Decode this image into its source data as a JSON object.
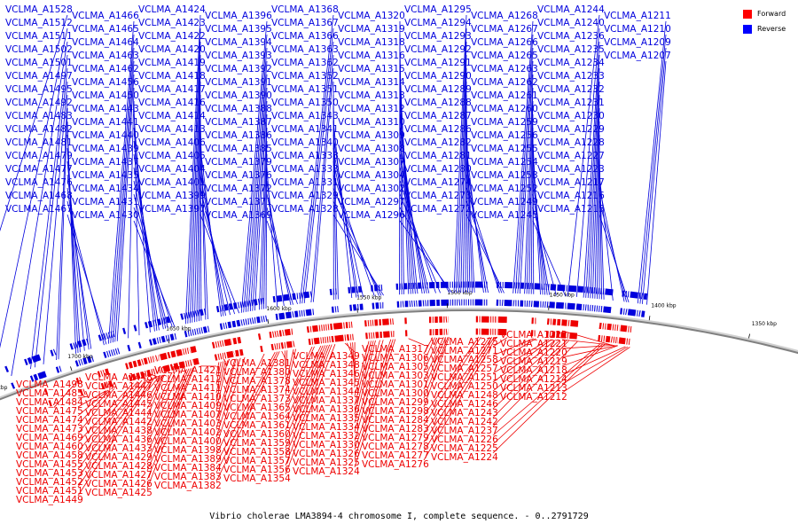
{
  "caption": "Vibrio cholerae LMA3894-4 chromosome I, complete sequence. - 0..2791729",
  "legend": [
    {
      "label": "Forward",
      "color": "#ff0000"
    },
    {
      "label": "Reverse",
      "color": "#0000ff"
    }
  ],
  "colors": {
    "forward": "#ee0000",
    "reverse": "#0000dd",
    "backbone": "#808080"
  },
  "ticks": [
    {
      "label": "1750 kbp",
      "deg": 112
    },
    {
      "label": "1700 kbp",
      "deg": 108
    },
    {
      "label": "1650 kbp",
      "deg": 103.5
    },
    {
      "label": "1600 kbp",
      "deg": 99
    },
    {
      "label": "1550 kbp",
      "deg": 95
    },
    {
      "label": "1500 kbp",
      "deg": 91
    },
    {
      "label": "1450 kbp",
      "deg": 86.5
    },
    {
      "label": "1400 kbp",
      "deg": 82
    },
    {
      "label": "1350 kbp",
      "deg": 77.5
    }
  ],
  "reverse_genes": [
    {
      "name": "VCLMA_A1528",
      "deg": 113.7
    },
    {
      "name": "VCLMA_A1512",
      "deg": 111.5
    },
    {
      "name": "VCLMA_A1511",
      "deg": 110.6
    },
    {
      "name": "VCLMA_A1502",
      "deg": 109.7
    },
    {
      "name": "VCLMA_A1501",
      "deg": 109.5
    },
    {
      "name": "VCLMA_A1497",
      "deg": 109.1
    },
    {
      "name": "VCLMA_A1495",
      "deg": 108.5
    },
    {
      "name": "VCLMA_A1492",
      "deg": 108.4
    },
    {
      "name": "VCLMA_A1483",
      "deg": 107.6
    },
    {
      "name": "VCLMA_A1482",
      "deg": 107.5
    },
    {
      "name": "VCLMA_A1481",
      "deg": 107.4
    },
    {
      "name": "VCLMA_A1477",
      "deg": 107.0
    },
    {
      "name": "VCLMA_A1479",
      "deg": 107.2
    },
    {
      "name": "VCLMA_A1476",
      "deg": 106.9
    },
    {
      "name": "VCLMA_A1468",
      "deg": 106.3
    },
    {
      "name": "VCLMA_A1467",
      "deg": 106.2
    },
    {
      "name": "VCLMA_A1466",
      "deg": 106.1
    },
    {
      "name": "VCLMA_A1465",
      "deg": 106.0
    },
    {
      "name": "VCLMA_A1464",
      "deg": 105.9
    },
    {
      "name": "VCLMA_A1463",
      "deg": 105.8
    },
    {
      "name": "VCLMA_A1462",
      "deg": 105.7
    },
    {
      "name": "VCLMA_A1456",
      "deg": 105.2
    },
    {
      "name": "VCLMA_A1450",
      "deg": 104.7
    },
    {
      "name": "VCLMA_A1443",
      "deg": 104.2
    },
    {
      "name": "VCLMA_A1441",
      "deg": 104.0
    },
    {
      "name": "VCLMA_A1440",
      "deg": 103.9
    },
    {
      "name": "VCLMA_A1439",
      "deg": 103.8
    },
    {
      "name": "VCLMA_A1437",
      "deg": 103.6
    },
    {
      "name": "VCLMA_A1435",
      "deg": 103.5
    },
    {
      "name": "VCLMA_A1434",
      "deg": 103.4
    },
    {
      "name": "VCLMA_A1431",
      "deg": 103.2
    },
    {
      "name": "VCLMA_A1430",
      "deg": 103.1
    },
    {
      "name": "VCLMA_A1424",
      "deg": 102.6
    },
    {
      "name": "VCLMA_A1423",
      "deg": 102.5
    },
    {
      "name": "VCLMA_A1422",
      "deg": 102.4
    },
    {
      "name": "VCLMA_A1418",
      "deg": 102.1
    },
    {
      "name": "VCLMA_A1417",
      "deg": 102.0
    },
    {
      "name": "VCLMA_A1416",
      "deg": 101.9
    },
    {
      "name": "VCLMA_A1414",
      "deg": 101.7
    },
    {
      "name": "VCLMA_A1419",
      "deg": 102.2
    },
    {
      "name": "VCLMA_A1420",
      "deg": 102.3
    },
    {
      "name": "VCLMA_A1413",
      "deg": 101.6
    },
    {
      "name": "VCLMA_A1406",
      "deg": 101.0
    },
    {
      "name": "VCLMA_A1405",
      "deg": 100.9
    },
    {
      "name": "VCLMA_A1404",
      "deg": 100.8
    },
    {
      "name": "VCLMA_A1401",
      "deg": 100.6
    },
    {
      "name": "VCLMA_A1399",
      "deg": 100.4
    },
    {
      "name": "VCLMA_A1397",
      "deg": 100.2
    },
    {
      "name": "VCLMA_A1396",
      "deg": 100.1
    },
    {
      "name": "VCLMA_A1395",
      "deg": 100.0
    },
    {
      "name": "VCLMA_A1394",
      "deg": 99.9
    },
    {
      "name": "VCLMA_A1393",
      "deg": 99.8
    },
    {
      "name": "VCLMA_A1392",
      "deg": 99.7
    },
    {
      "name": "VCLMA_A1391",
      "deg": 99.6
    },
    {
      "name": "VCLMA_A1390",
      "deg": 99.5
    },
    {
      "name": "VCLMA_A1388",
      "deg": 99.3
    },
    {
      "name": "VCLMA_A1387",
      "deg": 99.2
    },
    {
      "name": "VCLMA_A1386",
      "deg": 99.1
    },
    {
      "name": "VCLMA_A1385",
      "deg": 99.0
    },
    {
      "name": "VCLMA_A1379",
      "deg": 98.5
    },
    {
      "name": "VCLMA_A1376",
      "deg": 98.2
    },
    {
      "name": "VCLMA_A1372",
      "deg": 97.9
    },
    {
      "name": "VCLMA_A1371",
      "deg": 97.8
    },
    {
      "name": "VCLMA_A1369",
      "deg": 97.6
    },
    {
      "name": "VCLMA_A1368",
      "deg": 97.5
    },
    {
      "name": "VCLMA_A1367",
      "deg": 97.4
    },
    {
      "name": "VCLMA_A1366",
      "deg": 97.3
    },
    {
      "name": "VCLMA_A1363",
      "deg": 97.0
    },
    {
      "name": "VCLMA_A1362",
      "deg": 96.9
    },
    {
      "name": "VCLMA_A1352",
      "deg": 96.0
    },
    {
      "name": "VCLMA_A1351",
      "deg": 95.9
    },
    {
      "name": "VCLMA_A1350",
      "deg": 95.8
    },
    {
      "name": "VCLMA_A1343",
      "deg": 95.2
    },
    {
      "name": "VCLMA_A1341",
      "deg": 95.0
    },
    {
      "name": "VCLMA_A1340",
      "deg": 94.9
    },
    {
      "name": "VCLMA_A1338",
      "deg": 94.7
    },
    {
      "name": "VCLMA_A1333",
      "deg": 94.2
    },
    {
      "name": "VCLMA_A1331",
      "deg": 94.0
    },
    {
      "name": "VCLMA_A1329",
      "deg": 93.9
    },
    {
      "name": "VCLMA_A1328",
      "deg": 93.8
    },
    {
      "name": "VCLMA_A1320",
      "deg": 93.1
    },
    {
      "name": "VCLMA_A1319",
      "deg": 93.0
    },
    {
      "name": "VCLMA_A1318",
      "deg": 92.9
    },
    {
      "name": "VCLMA_A1316",
      "deg": 92.7
    },
    {
      "name": "VCLMA_A1315",
      "deg": 92.6
    },
    {
      "name": "VCLMA_A1314",
      "deg": 92.5
    },
    {
      "name": "VCLMA_A1313",
      "deg": 92.4
    },
    {
      "name": "VCLMA_A1312",
      "deg": 92.3
    },
    {
      "name": "VCLMA_A1310",
      "deg": 92.1
    },
    {
      "name": "VCLMA_A1309",
      "deg": 92.0
    },
    {
      "name": "VCLMA_A1308",
      "deg": 91.9
    },
    {
      "name": "VCLMA_A1307",
      "deg": 91.8
    },
    {
      "name": "VCLMA_A1304",
      "deg": 91.5
    },
    {
      "name": "VCLMA_A1302",
      "deg": 91.3
    },
    {
      "name": "VCLMA_A1297",
      "deg": 90.9
    },
    {
      "name": "VCLMA_A1296",
      "deg": 90.8
    },
    {
      "name": "VCLMA_A1295",
      "deg": 90.7
    },
    {
      "name": "VCLMA_A1294",
      "deg": 90.6
    },
    {
      "name": "VCLMA_A1293",
      "deg": 90.5
    },
    {
      "name": "VCLMA_A1292",
      "deg": 90.4
    },
    {
      "name": "VCLMA_A1291",
      "deg": 90.3
    },
    {
      "name": "VCLMA_A1290",
      "deg": 90.2
    },
    {
      "name": "VCLMA_A1289",
      "deg": 90.1
    },
    {
      "name": "VCLMA_A1288",
      "deg": 90.0
    },
    {
      "name": "VCLMA_A1287",
      "deg": 89.9
    },
    {
      "name": "VCLMA_A1286",
      "deg": 89.8
    },
    {
      "name": "VCLMA_A1282",
      "deg": 89.4
    },
    {
      "name": "VCLMA_A1281",
      "deg": 89.3
    },
    {
      "name": "VCLMA_A1280",
      "deg": 89.2
    },
    {
      "name": "VCLMA_A1274",
      "deg": 88.7
    },
    {
      "name": "VCLMA_A1273",
      "deg": 88.6
    },
    {
      "name": "VCLMA_A1272",
      "deg": 88.5
    },
    {
      "name": "VCLMA_A1268",
      "deg": 88.1
    },
    {
      "name": "VCLMA_A1267",
      "deg": 88.0
    },
    {
      "name": "VCLMA_A1266",
      "deg": 87.9
    },
    {
      "name": "VCLMA_A1265",
      "deg": 87.8
    },
    {
      "name": "VCLMA_A1263",
      "deg": 87.6
    },
    {
      "name": "VCLMA_A1262",
      "deg": 87.5
    },
    {
      "name": "VCLMA_A1261",
      "deg": 87.4
    },
    {
      "name": "VCLMA_A1260",
      "deg": 87.3
    },
    {
      "name": "VCLMA_A1259",
      "deg": 87.2
    },
    {
      "name": "VCLMA_A1256",
      "deg": 86.9
    },
    {
      "name": "VCLMA_A1255",
      "deg": 86.8
    },
    {
      "name": "VCLMA_A1254",
      "deg": 86.7
    },
    {
      "name": "VCLMA_A1253",
      "deg": 86.6
    },
    {
      "name": "VCLMA_A1252",
      "deg": 86.5
    },
    {
      "name": "VCLMA_A1249",
      "deg": 86.2
    },
    {
      "name": "VCLMA_A1245",
      "deg": 85.8
    },
    {
      "name": "VCLMA_A1244",
      "deg": 85.7
    },
    {
      "name": "VCLMA_A1240",
      "deg": 85.3
    },
    {
      "name": "VCLMA_A1236",
      "deg": 85.0
    },
    {
      "name": "VCLMA_A1235",
      "deg": 84.9
    },
    {
      "name": "VCLMA_A1234",
      "deg": 84.8
    },
    {
      "name": "VCLMA_A1233",
      "deg": 84.7
    },
    {
      "name": "VCLMA_A1232",
      "deg": 84.6
    },
    {
      "name": "VCLMA_A1231",
      "deg": 84.5
    },
    {
      "name": "VCLMA_A1230",
      "deg": 84.4
    },
    {
      "name": "VCLMA_A1229",
      "deg": 84.3
    },
    {
      "name": "VCLMA_A1228",
      "deg": 84.2
    },
    {
      "name": "VCLMA_A1227",
      "deg": 84.1
    },
    {
      "name": "VCLMA_A1223",
      "deg": 83.7
    },
    {
      "name": "VCLMA_A1217",
      "deg": 83.2
    },
    {
      "name": "VCLMA_A1216",
      "deg": 83.1
    },
    {
      "name": "VCLMA_A1215",
      "deg": 83.0
    },
    {
      "name": "VCLMA_A1211",
      "deg": 82.6
    },
    {
      "name": "VCLMA_A1210",
      "deg": 82.5
    },
    {
      "name": "VCLMA_A1209",
      "deg": 82.4
    },
    {
      "name": "VCLMA_A1207",
      "deg": 82.2
    }
  ],
  "forward_genes": [
    {
      "name": "VCLMA_A1498",
      "deg": 109.3
    },
    {
      "name": "VCLMA_A1484",
      "deg": 107.7
    },
    {
      "name": "VCLMA_A1485",
      "deg": 107.8
    },
    {
      "name": "VCLMA_A1475",
      "deg": 106.8
    },
    {
      "name": "VCLMA_A1474",
      "deg": 106.7
    },
    {
      "name": "VCLMA_A1473",
      "deg": 106.6
    },
    {
      "name": "VCLMA_A1469",
      "deg": 106.4
    },
    {
      "name": "VCLMA_A1460",
      "deg": 105.5
    },
    {
      "name": "VCLMA_A1458",
      "deg": 105.3
    },
    {
      "name": "VCLMA_A1455",
      "deg": 105.1
    },
    {
      "name": "VCLMA_A1453",
      "deg": 104.9
    },
    {
      "name": "VCLMA_A1452",
      "deg": 104.8
    },
    {
      "name": "VCLMA_A1451",
      "deg": 104.6
    },
    {
      "name": "VCLMA_A1449",
      "deg": 104.5
    },
    {
      "name": "VCLMA_A1448",
      "deg": 104.4
    },
    {
      "name": "VCLMA_A1447",
      "deg": 104.3
    },
    {
      "name": "VCLMA_A1446",
      "deg": 104.25
    },
    {
      "name": "VCLMA_A1445",
      "deg": 104.15
    },
    {
      "name": "VCLMA_A1444",
      "deg": 104.1
    },
    {
      "name": "VCLMA_A1442",
      "deg": 104.05
    },
    {
      "name": "VCLMA_A1438",
      "deg": 103.7
    },
    {
      "name": "VCLMA_A1436",
      "deg": 103.55
    },
    {
      "name": "VCLMA_A1433",
      "deg": 103.3
    },
    {
      "name": "VCLMA_A1429",
      "deg": 103.0
    },
    {
      "name": "VCLMA_A1428",
      "deg": 102.9
    },
    {
      "name": "VCLMA_A1427",
      "deg": 102.8
    },
    {
      "name": "VCLMA_A1426",
      "deg": 102.7
    },
    {
      "name": "VCLMA_A1425",
      "deg": 102.65
    },
    {
      "name": "VCLMA_A1421",
      "deg": 102.35
    },
    {
      "name": "VCLMA_A1412",
      "deg": 101.5
    },
    {
      "name": "VCLMA_A1411",
      "deg": 101.4
    },
    {
      "name": "VCLMA_A1410",
      "deg": 101.3
    },
    {
      "name": "VCLMA_A1409",
      "deg": 101.2
    },
    {
      "name": "VCLMA_A1407",
      "deg": 101.1
    },
    {
      "name": "VCLMA_A1403",
      "deg": 100.75
    },
    {
      "name": "VCLMA_A1402",
      "deg": 100.7
    },
    {
      "name": "VCLMA_A1400",
      "deg": 100.5
    },
    {
      "name": "VCLMA_A1398",
      "deg": 100.3
    },
    {
      "name": "VCLMA_A1389",
      "deg": 99.4
    },
    {
      "name": "VCLMA_A1384",
      "deg": 98.9
    },
    {
      "name": "VCLMA_A1383",
      "deg": 98.8
    },
    {
      "name": "VCLMA_A1382",
      "deg": 98.7
    },
    {
      "name": "VCLMA_A1381",
      "deg": 98.6
    },
    {
      "name": "VCLMA_A1380",
      "deg": 98.45
    },
    {
      "name": "VCLMA_A1378",
      "deg": 98.35
    },
    {
      "name": "VCLMA_A1374",
      "deg": 98.05
    },
    {
      "name": "VCLMA_A1373",
      "deg": 97.95
    },
    {
      "name": "VCLMA_A1365",
      "deg": 97.2
    },
    {
      "name": "VCLMA_A1364",
      "deg": 97.1
    },
    {
      "name": "VCLMA_A1361",
      "deg": 96.8
    },
    {
      "name": "VCLMA_A1360",
      "deg": 96.7
    },
    {
      "name": "VCLMA_A1359",
      "deg": 96.6
    },
    {
      "name": "VCLMA_A1358",
      "deg": 96.5
    },
    {
      "name": "VCLMA_A1357",
      "deg": 96.4
    },
    {
      "name": "VCLMA_A1356",
      "deg": 96.3
    },
    {
      "name": "VCLMA_A1354",
      "deg": 96.15
    },
    {
      "name": "VCLMA_A1349",
      "deg": 95.7
    },
    {
      "name": "VCLMA_A1348",
      "deg": 95.6
    },
    {
      "name": "VCLMA_A1346",
      "deg": 95.45
    },
    {
      "name": "VCLMA_A1345",
      "deg": 95.35
    },
    {
      "name": "VCLMA_A1344",
      "deg": 95.25
    },
    {
      "name": "VCLMA_A1337",
      "deg": 94.6
    },
    {
      "name": "VCLMA_A1336",
      "deg": 94.5
    },
    {
      "name": "VCLMA_A1335",
      "deg": 94.4
    },
    {
      "name": "VCLMA_A1334",
      "deg": 94.3
    },
    {
      "name": "VCLMA_A1332",
      "deg": 94.1
    },
    {
      "name": "VCLMA_A1330",
      "deg": 93.95
    },
    {
      "name": "VCLMA_A1326",
      "deg": 93.6
    },
    {
      "name": "VCLMA_A1325",
      "deg": 93.5
    },
    {
      "name": "VCLMA_A1324",
      "deg": 93.4
    },
    {
      "name": "VCLMA_A1317",
      "deg": 92.8
    },
    {
      "name": "VCLMA_A1306",
      "deg": 91.7
    },
    {
      "name": "VCLMA_A1305",
      "deg": 91.6
    },
    {
      "name": "VCLMA_A1303",
      "deg": 91.4
    },
    {
      "name": "VCLMA_A1301",
      "deg": 91.2
    },
    {
      "name": "VCLMA_A1300",
      "deg": 91.1
    },
    {
      "name": "VCLMA_A1299",
      "deg": 91.0
    },
    {
      "name": "VCLMA_A1298",
      "deg": 90.95
    },
    {
      "name": "VCLMA_A1284",
      "deg": 89.6
    },
    {
      "name": "VCLMA_A1283",
      "deg": 89.5
    },
    {
      "name": "VCLMA_A1279",
      "deg": 89.1
    },
    {
      "name": "VCLMA_A1278",
      "deg": 89.0
    },
    {
      "name": "VCLMA_A1277",
      "deg": 88.9
    },
    {
      "name": "VCLMA_A1276",
      "deg": 88.8
    },
    {
      "name": "VCLMA_A1275",
      "deg": 88.75
    },
    {
      "name": "VCLMA_A1271",
      "deg": 88.3
    },
    {
      "name": "VCLMA_A1258",
      "deg": 87.1
    },
    {
      "name": "VCLMA_A1257",
      "deg": 87.0
    },
    {
      "name": "VCLMA_A1251",
      "deg": 86.4
    },
    {
      "name": "VCLMA_A1250",
      "deg": 86.3
    },
    {
      "name": "VCLMA_A1248",
      "deg": 86.1
    },
    {
      "name": "VCLMA_A1246",
      "deg": 85.9
    },
    {
      "name": "VCLMA_A1243",
      "deg": 85.6
    },
    {
      "name": "VCLMA_A1242",
      "deg": 85.5
    },
    {
      "name": "VCLMA_A1237",
      "deg": 85.1
    },
    {
      "name": "VCLMA_A1226",
      "deg": 84.05
    },
    {
      "name": "VCLMA_A1225",
      "deg": 83.95
    },
    {
      "name": "VCLMA_A1224",
      "deg": 83.85
    },
    {
      "name": "VCLMA_A1222",
      "deg": 83.6
    },
    {
      "name": "VCLMA_A1221",
      "deg": 83.5
    },
    {
      "name": "VCLMA_A1220",
      "deg": 83.4
    },
    {
      "name": "VCLMA_A1219",
      "deg": 83.3
    },
    {
      "name": "VCLMA_A1218",
      "deg": 83.25
    },
    {
      "name": "VCLMA_A1214",
      "deg": 82.9
    },
    {
      "name": "VCLMA_A1213",
      "deg": 82.8
    },
    {
      "name": "VCLMA_A1212",
      "deg": 82.7
    }
  ]
}
